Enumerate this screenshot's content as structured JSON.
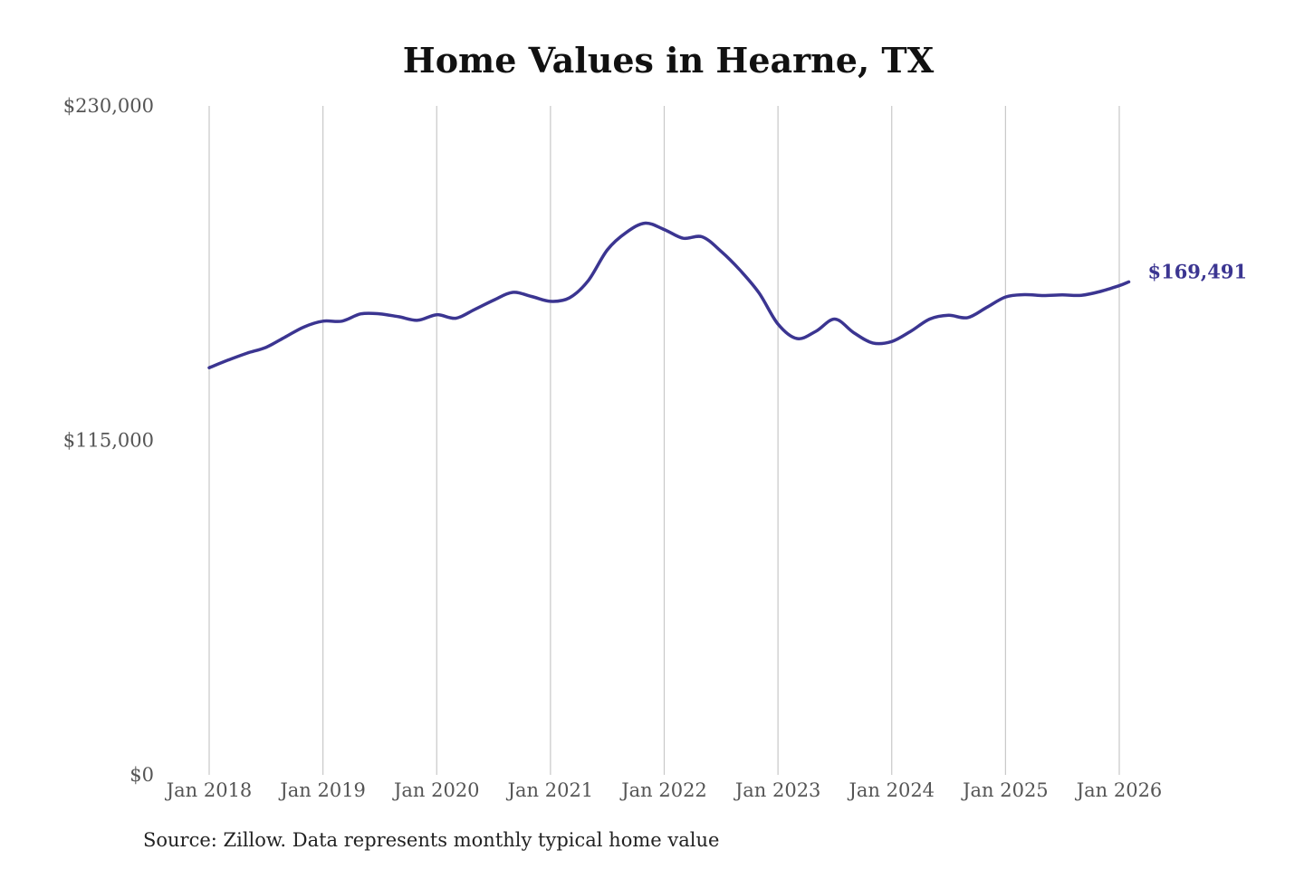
{
  "chart_data": {
    "type": "line",
    "title": "Home Values in Hearne, TX",
    "xlabel": "",
    "ylabel": "",
    "ylim": [
      0,
      230000
    ],
    "yticks": [
      {
        "value": 0,
        "label": "$0"
      },
      {
        "value": 115000,
        "label": "$115,000"
      },
      {
        "value": 230000,
        "label": "$230,000"
      }
    ],
    "xlim": [
      "2018-01",
      "2026-02"
    ],
    "xticks": [
      {
        "date": "2018-01",
        "label": "Jan 2018"
      },
      {
        "date": "2019-01",
        "label": "Jan 2019"
      },
      {
        "date": "2020-01",
        "label": "Jan 2020"
      },
      {
        "date": "2021-01",
        "label": "Jan 2021"
      },
      {
        "date": "2022-01",
        "label": "Jan 2022"
      },
      {
        "date": "2023-01",
        "label": "Jan 2023"
      },
      {
        "date": "2024-01",
        "label": "Jan 2024"
      },
      {
        "date": "2025-01",
        "label": "Jan 2025"
      },
      {
        "date": "2026-01",
        "label": "Jan 2026"
      }
    ],
    "grid": {
      "vertical": true,
      "horizontal": false
    },
    "series": [
      {
        "color": "#3b3591",
        "x": [
          "2018-01",
          "2018-03",
          "2018-05",
          "2018-07",
          "2018-09",
          "2018-11",
          "2019-01",
          "2019-03",
          "2019-05",
          "2019-07",
          "2019-09",
          "2019-11",
          "2020-01",
          "2020-03",
          "2020-05",
          "2020-07",
          "2020-09",
          "2020-11",
          "2021-01",
          "2021-03",
          "2021-05",
          "2021-07",
          "2021-09",
          "2021-11",
          "2022-01",
          "2022-03",
          "2022-05",
          "2022-07",
          "2022-09",
          "2022-11",
          "2023-01",
          "2023-03",
          "2023-05",
          "2023-07",
          "2023-09",
          "2023-11",
          "2024-01",
          "2024-03",
          "2024-05",
          "2024-07",
          "2024-09",
          "2024-11",
          "2025-01",
          "2025-03",
          "2025-05",
          "2025-07",
          "2025-09",
          "2025-11",
          "2026-01",
          "2026-02"
        ],
        "values": [
          140000,
          142600,
          145000,
          147000,
          150500,
          154000,
          156000,
          156000,
          158500,
          158500,
          157500,
          156300,
          158200,
          157000,
          160000,
          163200,
          165900,
          164500,
          162800,
          164000,
          170000,
          180500,
          186500,
          189700,
          187500,
          184500,
          185000,
          180000,
          173500,
          165700,
          155000,
          150000,
          152500,
          156700,
          152000,
          148500,
          149000,
          152500,
          156700,
          158000,
          157200,
          160700,
          164300,
          165100,
          164800,
          165000,
          164900,
          166200,
          168200,
          169491
        ]
      }
    ],
    "end_label": "$169,491",
    "source": "Source: Zillow. Data represents monthly typical home value"
  }
}
